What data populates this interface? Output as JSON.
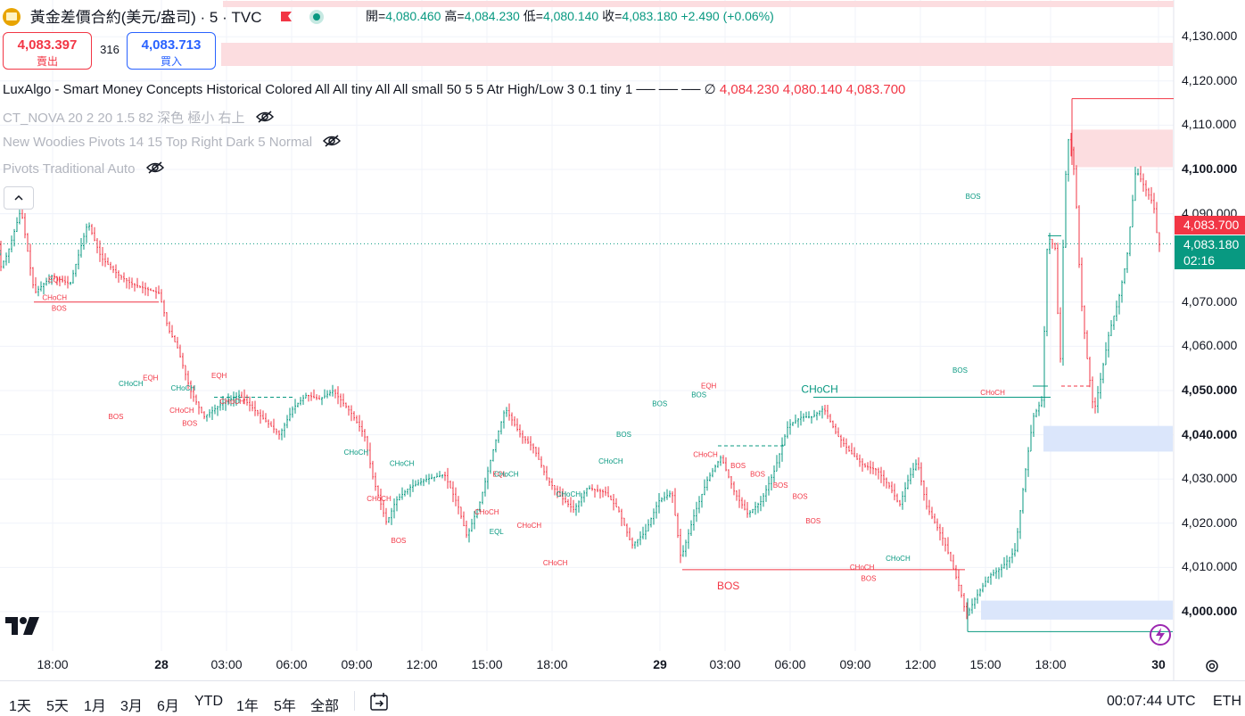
{
  "header": {
    "symbol_title": "黃金差價合約(美元/盎司)",
    "interval": "5",
    "source": "TVC",
    "sep": "·",
    "open_label": "開=",
    "open": "4,080.460",
    "high_label": "高=",
    "high": "4,084.230",
    "low_label": "低=",
    "low": "4,080.140",
    "close_label": "收=",
    "close": "4,083.180",
    "change": "+2.490 (+0.06%)"
  },
  "trade": {
    "sell_price": "4,083.397",
    "sell_label": "賣出",
    "spread": "316",
    "buy_price": "4,083.713",
    "buy_label": "買入"
  },
  "indicators": {
    "luxalgo": "LuxAlgo - Smart Money Concepts Historical Colored All All tiny All All small 50 5 5 Atr High/Low 3 0.1 tiny 1 ── ── ──  ∅",
    "luxalgo_v1": "4,084.230",
    "luxalgo_v2": "4,080.140",
    "luxalgo_v3": "4,083.700",
    "ct_nova": "CT_NOVA 20 2 20 1.5 82 深色 極小 右上",
    "woodies": "New Woodies Pivots 14 15 Top Right Dark 5 Normal",
    "pivots": "Pivots Traditional Auto"
  },
  "price_axis": {
    "labels": [
      "4,130.000",
      "4,120.000",
      "4,110.000",
      "4,100.000",
      "4,090.000",
      "4,070.000",
      "4,060.000",
      "4,050.000",
      "4,040.000",
      "4,030.000",
      "4,020.000",
      "4,010.000",
      "4,000.000"
    ],
    "values": [
      4130,
      4120,
      4110,
      4100,
      4090,
      4070,
      4060,
      4050,
      4040,
      4030,
      4020,
      4010,
      4000
    ],
    "bold": [
      false,
      false,
      false,
      true,
      false,
      false,
      false,
      true,
      true,
      false,
      false,
      false,
      true
    ],
    "tag_red": "4,083.700",
    "tag_green": "4,083.180",
    "countdown": "02:16"
  },
  "time_axis": {
    "labels": [
      "18:00",
      "28",
      "03:00",
      "06:00",
      "09:00",
      "12:00",
      "15:00",
      "18:00",
      "29",
      "03:00",
      "06:00",
      "09:00",
      "12:00",
      "15:00",
      "18:00",
      "30"
    ],
    "bold": [
      false,
      true,
      false,
      false,
      false,
      false,
      false,
      false,
      true,
      false,
      false,
      false,
      false,
      false,
      false,
      true
    ]
  },
  "timeframes": [
    "1天",
    "5天",
    "1月",
    "3月",
    "6月",
    "YTD",
    "1年",
    "5年",
    "全部"
  ],
  "footer": {
    "clock": "00:07:44 UTC",
    "session": "ETH"
  },
  "annotations": [
    {
      "t": "BOS",
      "p": 4080.5,
      "c": "g",
      "s": "s",
      "tt": -0.9
    },
    {
      "t": "EQH",
      "p": 4074.5,
      "c": "r",
      "s": "s",
      "tt": 0.05
    },
    {
      "t": "CHoCH",
      "p": 4070.5,
      "c": "r",
      "s": "s",
      "tt": 0.03
    },
    {
      "t": "BOS",
      "p": 4068.0,
      "c": "r",
      "s": "s",
      "tt": 0.1
    },
    {
      "t": "BOS",
      "p": 4064.5,
      "c": "r",
      "s": "l",
      "tt": -1.0
    },
    {
      "t": "EQH",
      "p": 4052.3,
      "c": "r",
      "s": "s",
      "tt": 1.5
    },
    {
      "t": "CHoCH",
      "p": 4051.0,
      "c": "g",
      "s": "s",
      "tt": 1.2
    },
    {
      "t": "CHoCH",
      "p": 4050.0,
      "c": "g",
      "s": "s",
      "tt": 2.0
    },
    {
      "t": "EQH",
      "p": 4052.8,
      "c": "r",
      "s": "s",
      "tt": 2.55
    },
    {
      "t": "CHoCH",
      "p": 4047.0,
      "c": "r",
      "s": "s",
      "tt": 2.75
    },
    {
      "t": "CHoCH",
      "p": 4045.0,
      "c": "r",
      "s": "s",
      "tt": 1.98
    },
    {
      "t": "BOS",
      "p": 4043.5,
      "c": "r",
      "s": "s",
      "tt": 0.97
    },
    {
      "t": "BOS",
      "p": 4042.0,
      "c": "r",
      "s": "s",
      "tt": 2.1
    },
    {
      "t": "CHoCH",
      "p": 4035.5,
      "c": "g",
      "s": "s",
      "tt": 4.65
    },
    {
      "t": "CHoCH",
      "p": 4033.0,
      "c": "g",
      "s": "s",
      "tt": 5.35
    },
    {
      "t": "CHoCH",
      "p": 4025.0,
      "c": "r",
      "s": "s",
      "tt": 5.0
    },
    {
      "t": "BOS",
      "p": 4015.5,
      "c": "r",
      "s": "s",
      "tt": 5.3
    },
    {
      "t": "EQL",
      "p": 4030.5,
      "c": "r",
      "s": "s",
      "tt": 6.85
    },
    {
      "t": "CHoCH",
      "p": 4030.5,
      "c": "g",
      "s": "s",
      "tt": 6.95
    },
    {
      "t": "CHoCH",
      "p": 4022.0,
      "c": "r",
      "s": "s",
      "tt": 6.65
    },
    {
      "t": "CHoCH",
      "p": 4019.0,
      "c": "r",
      "s": "s",
      "tt": 7.3
    },
    {
      "t": "EQL",
      "p": 4017.5,
      "c": "g",
      "s": "s",
      "tt": 6.8
    },
    {
      "t": "CHoCH",
      "p": 4026.0,
      "c": "g",
      "s": "s",
      "tt": 7.9
    },
    {
      "t": "CHoCH",
      "p": 4010.5,
      "c": "r",
      "s": "s",
      "tt": 7.7
    },
    {
      "t": "CHoCH",
      "p": 4033.5,
      "c": "g",
      "s": "s",
      "tt": 8.55
    },
    {
      "t": "BOS",
      "p": 4039.5,
      "c": "g",
      "s": "s",
      "tt": 8.75
    },
    {
      "t": "BOS",
      "p": 4046.5,
      "c": "g",
      "s": "s",
      "tt": 9.3
    },
    {
      "t": "BOS",
      "p": 4048.5,
      "c": "g",
      "s": "s",
      "tt": 9.9
    },
    {
      "t": "EQH",
      "p": 4050.5,
      "c": "r",
      "s": "s",
      "tt": 10.05
    },
    {
      "t": "CHoCH",
      "p": 4049.5,
      "c": "g",
      "s": "m",
      "tt": 11.75
    },
    {
      "t": "CHoCH",
      "p": 4035.0,
      "c": "r",
      "s": "s",
      "tt": 10.0
    },
    {
      "t": "BOS",
      "p": 4032.5,
      "c": "r",
      "s": "s",
      "tt": 10.5
    },
    {
      "t": "BOS",
      "p": 4030.5,
      "c": "r",
      "s": "s",
      "tt": 10.8
    },
    {
      "t": "BOS",
      "p": 4028.0,
      "c": "r",
      "s": "s",
      "tt": 11.15
    },
    {
      "t": "BOS",
      "p": 4025.5,
      "c": "r",
      "s": "s",
      "tt": 11.45
    },
    {
      "t": "BOS",
      "p": 4020.0,
      "c": "r",
      "s": "s",
      "tt": 11.65
    },
    {
      "t": "BOS",
      "p": 4005.0,
      "c": "r",
      "s": "l",
      "tt": 10.35
    },
    {
      "t": "CHoCH",
      "p": 4009.5,
      "c": "r",
      "s": "s",
      "tt": 12.4
    },
    {
      "t": "BOS",
      "p": 4007.0,
      "c": "r",
      "s": "s",
      "tt": 12.5
    },
    {
      "t": "CHoCH",
      "p": 4011.5,
      "c": "g",
      "s": "s",
      "tt": 12.95
    },
    {
      "t": "BOS",
      "p": 4054.0,
      "c": "g",
      "s": "s",
      "tt": 13.9
    },
    {
      "t": "BOS",
      "p": 4093.3,
      "c": "g",
      "s": "s",
      "tt": 14.1
    },
    {
      "t": "CHoCH",
      "p": 4049.0,
      "c": "r",
      "s": "s",
      "tt": 14.4
    }
  ]
}
